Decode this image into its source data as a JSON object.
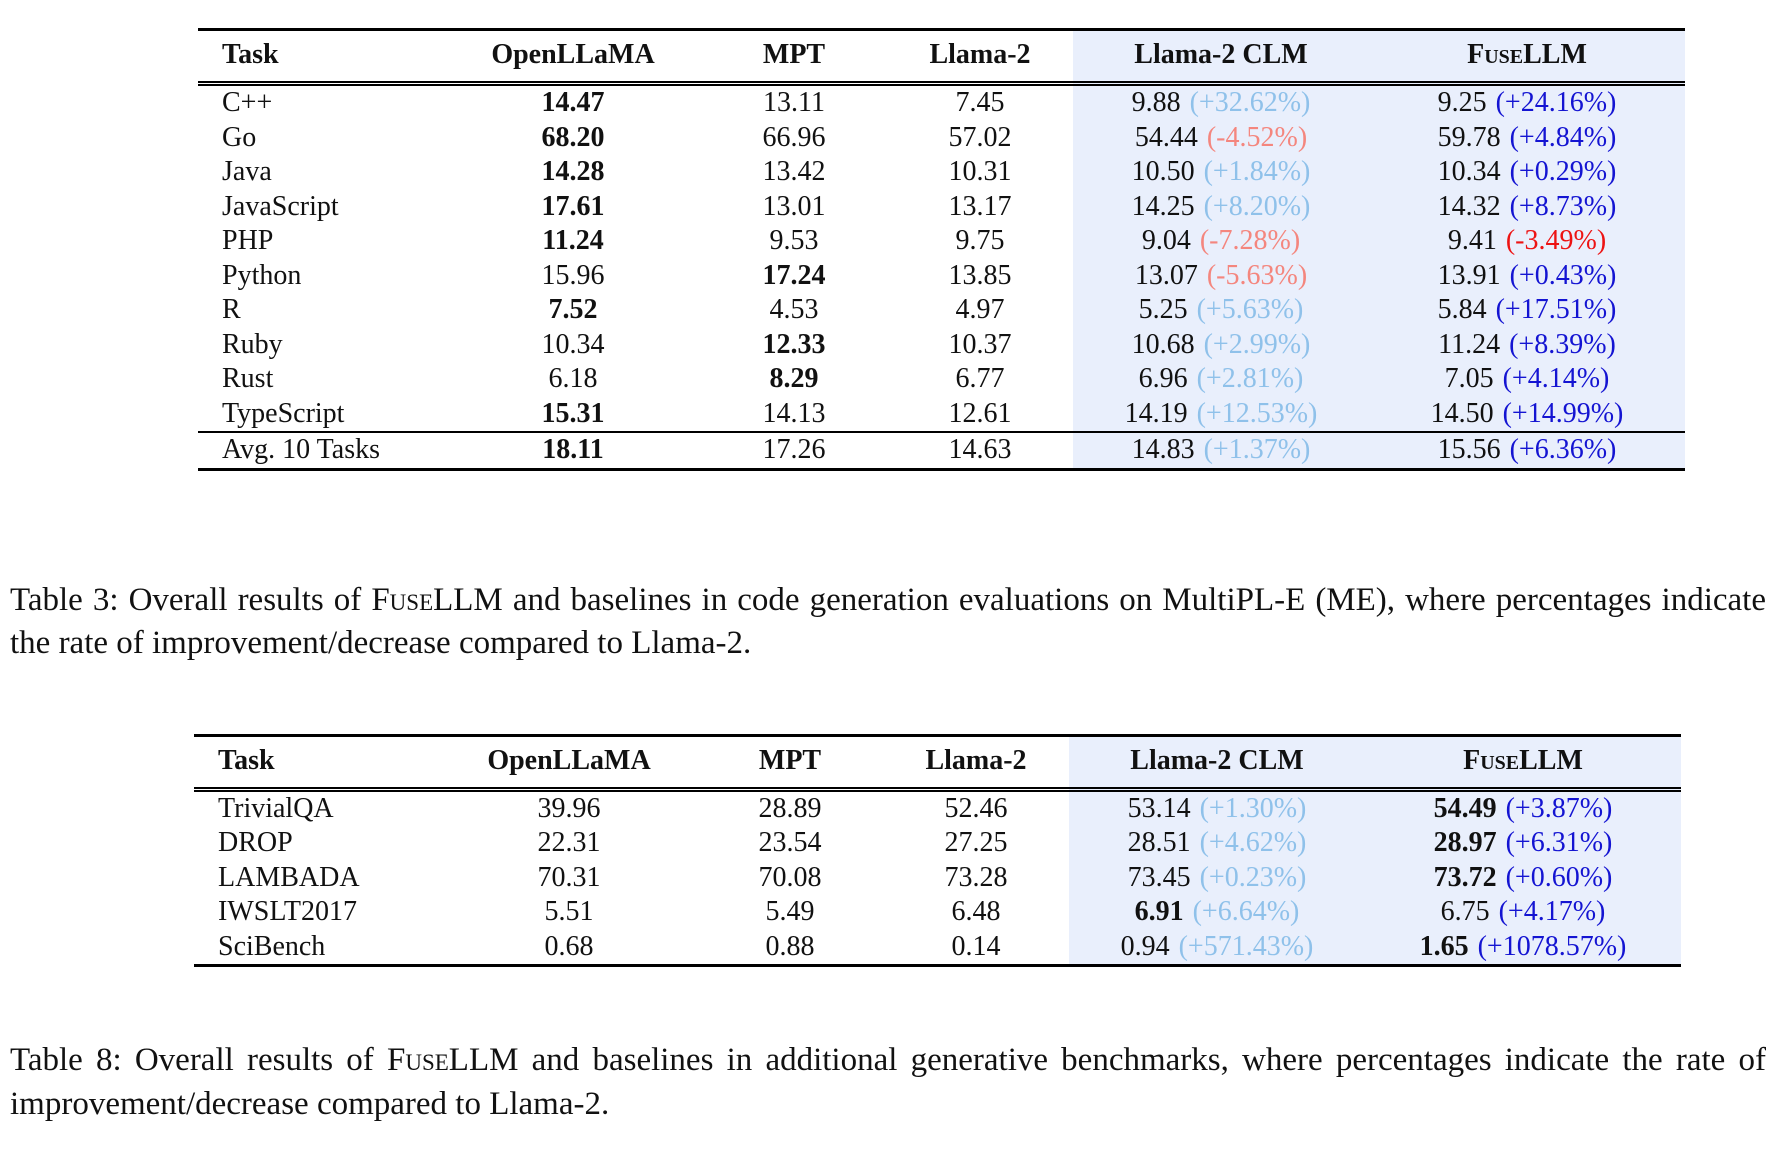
{
  "colors": {
    "highlight_bg": "#e9effc",
    "clm_pos": "#8fc1ea",
    "clm_neg": "#f4867e",
    "fuse_pos": "#1414d2",
    "fuse_neg": "#ed1313",
    "text": "#111111"
  },
  "tables": [
    {
      "id": "table3",
      "headers": [
        {
          "t": "Task"
        },
        {
          "t": "OpenLLaMA"
        },
        {
          "t": "MPT"
        },
        {
          "t": "Llama-2"
        },
        {
          "t": "Llama-2 CLM"
        },
        {
          "t": "FuseLLM",
          "sc": true
        }
      ],
      "rows": [
        {
          "cells": [
            {
              "t": "C++"
            },
            {
              "t": "14.47",
              "b": true
            },
            {
              "t": "13.11"
            },
            {
              "t": "7.45"
            },
            {
              "t": "9.88",
              "p": "(+32.62%)",
              "pc": "clm_pos"
            },
            {
              "t": "9.25",
              "p": "(+24.16%)",
              "pc": "fuse_pos"
            }
          ]
        },
        {
          "cells": [
            {
              "t": "Go"
            },
            {
              "t": "68.20",
              "b": true
            },
            {
              "t": "66.96"
            },
            {
              "t": "57.02"
            },
            {
              "t": "54.44",
              "p": "(-4.52%)",
              "pc": "clm_neg"
            },
            {
              "t": "59.78",
              "p": "(+4.84%)",
              "pc": "fuse_pos"
            }
          ]
        },
        {
          "cells": [
            {
              "t": "Java"
            },
            {
              "t": "14.28",
              "b": true
            },
            {
              "t": "13.42"
            },
            {
              "t": "10.31"
            },
            {
              "t": "10.50",
              "p": "(+1.84%)",
              "pc": "clm_pos"
            },
            {
              "t": "10.34",
              "p": "(+0.29%)",
              "pc": "fuse_pos"
            }
          ]
        },
        {
          "cells": [
            {
              "t": "JavaScript"
            },
            {
              "t": "17.61",
              "b": true
            },
            {
              "t": "13.01"
            },
            {
              "t": "13.17"
            },
            {
              "t": "14.25",
              "p": "(+8.20%)",
              "pc": "clm_pos"
            },
            {
              "t": "14.32",
              "p": "(+8.73%)",
              "pc": "fuse_pos"
            }
          ]
        },
        {
          "cells": [
            {
              "t": "PHP"
            },
            {
              "t": "11.24",
              "b": true
            },
            {
              "t": "9.53"
            },
            {
              "t": "9.75"
            },
            {
              "t": "9.04",
              "p": "(-7.28%)",
              "pc": "clm_neg"
            },
            {
              "t": "9.41",
              "p": "(-3.49%)",
              "pc": "fuse_neg"
            }
          ]
        },
        {
          "cells": [
            {
              "t": "Python"
            },
            {
              "t": "15.96"
            },
            {
              "t": "17.24",
              "b": true
            },
            {
              "t": "13.85"
            },
            {
              "t": "13.07",
              "p": "(-5.63%)",
              "pc": "clm_neg"
            },
            {
              "t": "13.91",
              "p": "(+0.43%)",
              "pc": "fuse_pos"
            }
          ]
        },
        {
          "cells": [
            {
              "t": "R"
            },
            {
              "t": "7.52",
              "b": true
            },
            {
              "t": "4.53"
            },
            {
              "t": "4.97"
            },
            {
              "t": "5.25",
              "p": "(+5.63%)",
              "pc": "clm_pos"
            },
            {
              "t": "5.84",
              "p": "(+17.51%)",
              "pc": "fuse_pos"
            }
          ]
        },
        {
          "cells": [
            {
              "t": "Ruby"
            },
            {
              "t": "10.34"
            },
            {
              "t": "12.33",
              "b": true
            },
            {
              "t": "10.37"
            },
            {
              "t": "10.68",
              "p": "(+2.99%)",
              "pc": "clm_pos"
            },
            {
              "t": "11.24",
              "p": "(+8.39%)",
              "pc": "fuse_pos"
            }
          ]
        },
        {
          "cells": [
            {
              "t": "Rust"
            },
            {
              "t": "6.18"
            },
            {
              "t": "8.29",
              "b": true
            },
            {
              "t": "6.77"
            },
            {
              "t": "6.96",
              "p": "(+2.81%)",
              "pc": "clm_pos"
            },
            {
              "t": "7.05",
              "p": "(+4.14%)",
              "pc": "fuse_pos"
            }
          ]
        },
        {
          "cells": [
            {
              "t": "TypeScript"
            },
            {
              "t": "15.31",
              "b": true
            },
            {
              "t": "14.13"
            },
            {
              "t": "12.61"
            },
            {
              "t": "14.19",
              "p": "(+12.53%)",
              "pc": "clm_pos"
            },
            {
              "t": "14.50",
              "p": "(+14.99%)",
              "pc": "fuse_pos"
            }
          ]
        },
        {
          "rule": true,
          "cells": [
            {
              "t": "Avg. 10 Tasks"
            },
            {
              "t": "18.11",
              "b": true
            },
            {
              "t": "17.26"
            },
            {
              "t": "14.63"
            },
            {
              "t": "14.83",
              "p": "(+1.37%)",
              "pc": "clm_pos"
            },
            {
              "t": "15.56",
              "p": "(+6.36%)",
              "pc": "fuse_pos"
            }
          ]
        }
      ]
    },
    {
      "id": "table8",
      "headers": [
        {
          "t": "Task"
        },
        {
          "t": "OpenLLaMA"
        },
        {
          "t": "MPT"
        },
        {
          "t": "Llama-2"
        },
        {
          "t": "Llama-2 CLM"
        },
        {
          "t": "FuseLLM",
          "sc": true
        }
      ],
      "rows": [
        {
          "cells": [
            {
              "t": "TrivialQA"
            },
            {
              "t": "39.96"
            },
            {
              "t": "28.89"
            },
            {
              "t": "52.46"
            },
            {
              "t": "53.14",
              "p": "(+1.30%)",
              "pc": "clm_pos"
            },
            {
              "t": "54.49",
              "b": true,
              "p": "(+3.87%)",
              "pc": "fuse_pos"
            }
          ]
        },
        {
          "cells": [
            {
              "t": "DROP"
            },
            {
              "t": "22.31"
            },
            {
              "t": "23.54"
            },
            {
              "t": "27.25"
            },
            {
              "t": "28.51",
              "p": "(+4.62%)",
              "pc": "clm_pos"
            },
            {
              "t": "28.97",
              "b": true,
              "p": "(+6.31%)",
              "pc": "fuse_pos"
            }
          ]
        },
        {
          "cells": [
            {
              "t": "LAMBADA"
            },
            {
              "t": "70.31"
            },
            {
              "t": "70.08"
            },
            {
              "t": "73.28"
            },
            {
              "t": "73.45",
              "p": "(+0.23%)",
              "pc": "clm_pos"
            },
            {
              "t": "73.72",
              "b": true,
              "p": "(+0.60%)",
              "pc": "fuse_pos"
            }
          ]
        },
        {
          "cells": [
            {
              "t": "IWSLT2017"
            },
            {
              "t": "5.51"
            },
            {
              "t": "5.49"
            },
            {
              "t": "6.48"
            },
            {
              "t": "6.91",
              "b": true,
              "p": "(+6.64%)",
              "pc": "clm_pos"
            },
            {
              "t": "6.75",
              "p": "(+4.17%)",
              "pc": "fuse_pos"
            }
          ]
        },
        {
          "cells": [
            {
              "t": "SciBench"
            },
            {
              "t": "0.68"
            },
            {
              "t": "0.88"
            },
            {
              "t": "0.14"
            },
            {
              "t": "0.94",
              "p": "(+571.43%)",
              "pc": "clm_pos"
            },
            {
              "t": "1.65",
              "b": true,
              "p": "(+1078.57%)",
              "pc": "fuse_pos"
            }
          ]
        }
      ]
    }
  ],
  "captions": [
    {
      "parts": [
        {
          "t": "Table 3: Overall results of "
        },
        {
          "t": "FuseLLM"
        },
        {
          "t": " and baselines in code generation evaluations on MultiPL-E (ME), where percentages indicate the rate of improvement/decrease compared to Llama-2."
        }
      ]
    },
    {
      "parts": [
        {
          "t": "Table 8: Overall results of "
        },
        {
          "t": "FuseLLM"
        },
        {
          "t": " and baselines in additional generative benchmarks, where percentages indicate the rate of improvement/decrease compared to Llama-2."
        }
      ]
    }
  ]
}
